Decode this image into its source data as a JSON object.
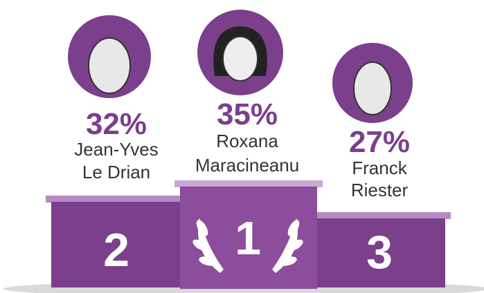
{
  "podium": [
    {
      "rank": "2",
      "percent": "32%",
      "name_lines": [
        "Jean-Yves",
        "Le Drian"
      ]
    },
    {
      "rank": "1",
      "percent": "35%",
      "name_lines": [
        "Roxana",
        "Maracineanu"
      ]
    },
    {
      "rank": "3",
      "percent": "27%",
      "name_lines": [
        "Franck",
        "Riester"
      ]
    }
  ]
}
